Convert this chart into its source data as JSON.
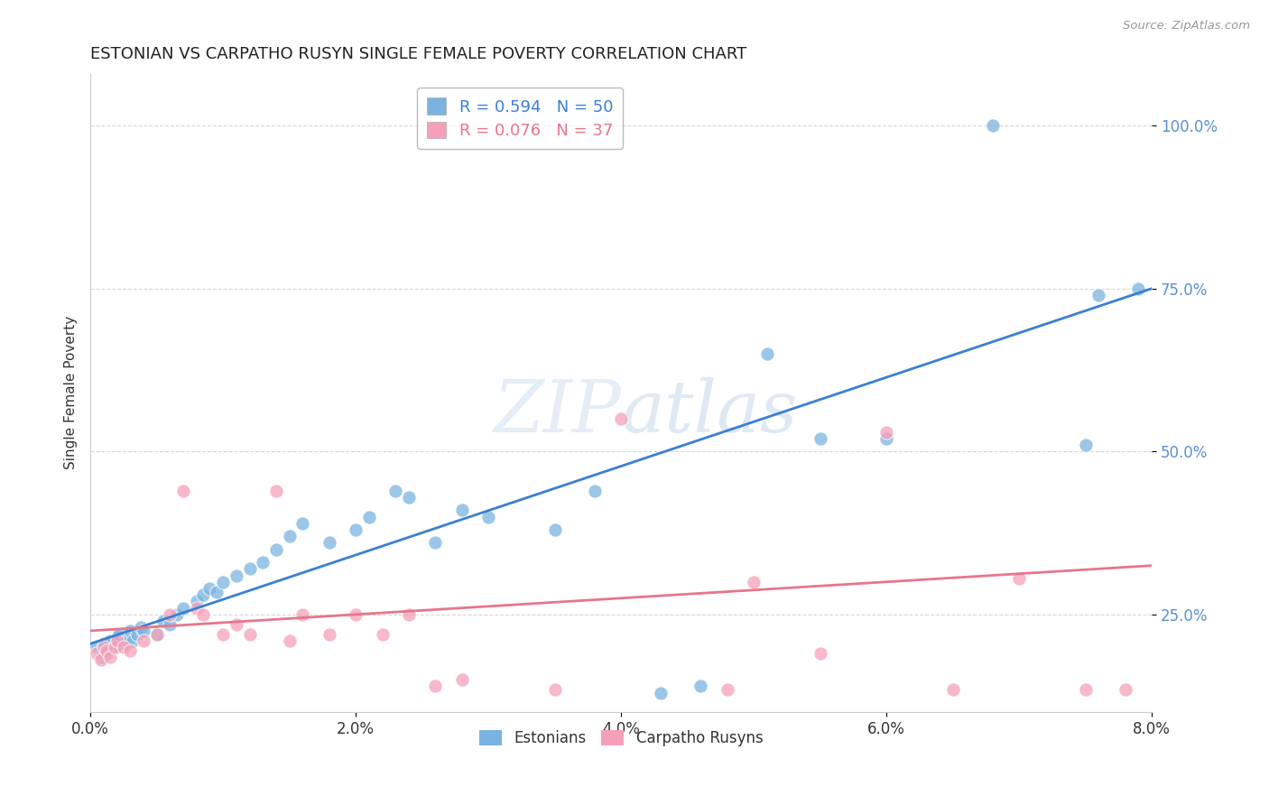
{
  "title": "ESTONIAN VS CARPATHO RUSYN SINGLE FEMALE POVERTY CORRELATION CHART",
  "source": "Source: ZipAtlas.com",
  "ylabel": "Single Female Poverty",
  "xlim": [
    0.0,
    8.0
  ],
  "ylim": [
    10.0,
    108.0
  ],
  "ytick_labels": [
    "25.0%",
    "50.0%",
    "75.0%",
    "100.0%"
  ],
  "ytick_values": [
    25.0,
    50.0,
    75.0,
    100.0
  ],
  "xtick_labels": [
    "0.0%",
    "2.0%",
    "4.0%",
    "6.0%",
    "8.0%"
  ],
  "xtick_values": [
    0.0,
    2.0,
    4.0,
    6.0,
    8.0
  ],
  "watermark_text": "ZIPatlas",
  "blue_label": "R = 0.594   N = 50",
  "pink_label": "R = 0.076   N = 37",
  "blue_color": "#7ab3e0",
  "pink_color": "#f5a0b8",
  "blue_line_color": "#3a7fd5",
  "pink_line_color": "#e8758a",
  "ytick_color": "#5a8fd0",
  "xtick_color": "#333333",
  "blue_scatter": [
    [
      0.05,
      20.0
    ],
    [
      0.08,
      18.5
    ],
    [
      0.1,
      20.5
    ],
    [
      0.12,
      19.0
    ],
    [
      0.15,
      21.0
    ],
    [
      0.18,
      20.0
    ],
    [
      0.2,
      21.5
    ],
    [
      0.22,
      22.0
    ],
    [
      0.25,
      20.5
    ],
    [
      0.28,
      21.0
    ],
    [
      0.3,
      22.5
    ],
    [
      0.32,
      21.0
    ],
    [
      0.35,
      22.0
    ],
    [
      0.38,
      23.0
    ],
    [
      0.4,
      22.5
    ],
    [
      0.5,
      22.0
    ],
    [
      0.55,
      24.0
    ],
    [
      0.6,
      23.5
    ],
    [
      0.65,
      25.0
    ],
    [
      0.7,
      26.0
    ],
    [
      0.8,
      27.0
    ],
    [
      0.85,
      28.0
    ],
    [
      0.9,
      29.0
    ],
    [
      0.95,
      28.5
    ],
    [
      1.0,
      30.0
    ],
    [
      1.1,
      31.0
    ],
    [
      1.2,
      32.0
    ],
    [
      1.3,
      33.0
    ],
    [
      1.4,
      35.0
    ],
    [
      1.5,
      37.0
    ],
    [
      1.6,
      39.0
    ],
    [
      1.8,
      36.0
    ],
    [
      2.0,
      38.0
    ],
    [
      2.1,
      40.0
    ],
    [
      2.3,
      44.0
    ],
    [
      2.4,
      43.0
    ],
    [
      2.6,
      36.0
    ],
    [
      2.8,
      41.0
    ],
    [
      3.0,
      40.0
    ],
    [
      3.5,
      38.0
    ],
    [
      3.8,
      44.0
    ],
    [
      4.3,
      13.0
    ],
    [
      4.6,
      14.0
    ],
    [
      5.1,
      65.0
    ],
    [
      5.5,
      52.0
    ],
    [
      6.0,
      52.0
    ],
    [
      6.8,
      100.0
    ],
    [
      7.5,
      51.0
    ],
    [
      7.6,
      74.0
    ],
    [
      7.9,
      75.0
    ]
  ],
  "pink_scatter": [
    [
      0.05,
      19.0
    ],
    [
      0.08,
      18.0
    ],
    [
      0.1,
      20.0
    ],
    [
      0.12,
      19.5
    ],
    [
      0.15,
      18.5
    ],
    [
      0.18,
      20.0
    ],
    [
      0.2,
      21.0
    ],
    [
      0.25,
      20.0
    ],
    [
      0.3,
      19.5
    ],
    [
      0.4,
      21.0
    ],
    [
      0.5,
      22.0
    ],
    [
      0.6,
      25.0
    ],
    [
      0.7,
      44.0
    ],
    [
      0.8,
      26.0
    ],
    [
      0.85,
      25.0
    ],
    [
      1.0,
      22.0
    ],
    [
      1.1,
      23.5
    ],
    [
      1.2,
      22.0
    ],
    [
      1.4,
      44.0
    ],
    [
      1.5,
      21.0
    ],
    [
      1.6,
      25.0
    ],
    [
      1.8,
      22.0
    ],
    [
      2.0,
      25.0
    ],
    [
      2.2,
      22.0
    ],
    [
      2.4,
      25.0
    ],
    [
      2.6,
      14.0
    ],
    [
      2.8,
      15.0
    ],
    [
      3.5,
      13.5
    ],
    [
      4.0,
      55.0
    ],
    [
      4.8,
      13.5
    ],
    [
      5.0,
      30.0
    ],
    [
      5.5,
      19.0
    ],
    [
      6.0,
      53.0
    ],
    [
      6.5,
      13.5
    ],
    [
      7.0,
      30.5
    ],
    [
      7.5,
      13.5
    ],
    [
      7.8,
      13.5
    ]
  ],
  "blue_trendline": [
    [
      0.0,
      20.5
    ],
    [
      8.0,
      75.0
    ]
  ],
  "pink_trendline": [
    [
      0.0,
      22.5
    ],
    [
      8.0,
      32.5
    ]
  ],
  "background_color": "#ffffff",
  "grid_color": "#cccccc",
  "title_fontsize": 13,
  "axis_label_fontsize": 11,
  "tick_fontsize": 12,
  "legend_fontsize": 13
}
